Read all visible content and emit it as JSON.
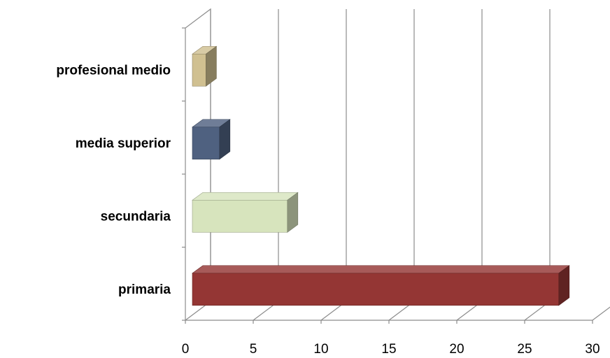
{
  "chart_data": {
    "type": "bar",
    "orientation": "horizontal",
    "style": "3d",
    "title": "",
    "xlabel": "",
    "ylabel": "",
    "categories": [
      "primaria",
      "secundaria",
      "media superior",
      "profesional medio"
    ],
    "values": [
      27,
      7,
      2,
      1
    ],
    "colors": [
      "#943634",
      "#d7e4bd",
      "#4f6180",
      "#d0c091"
    ],
    "xlim": [
      0,
      30
    ],
    "xticks": [
      0,
      5,
      10,
      15,
      20,
      25,
      30
    ],
    "xtick_labels": [
      "0",
      "5",
      "10",
      "15",
      "20",
      "25",
      "30"
    ],
    "grid": true,
    "legend": "none"
  }
}
